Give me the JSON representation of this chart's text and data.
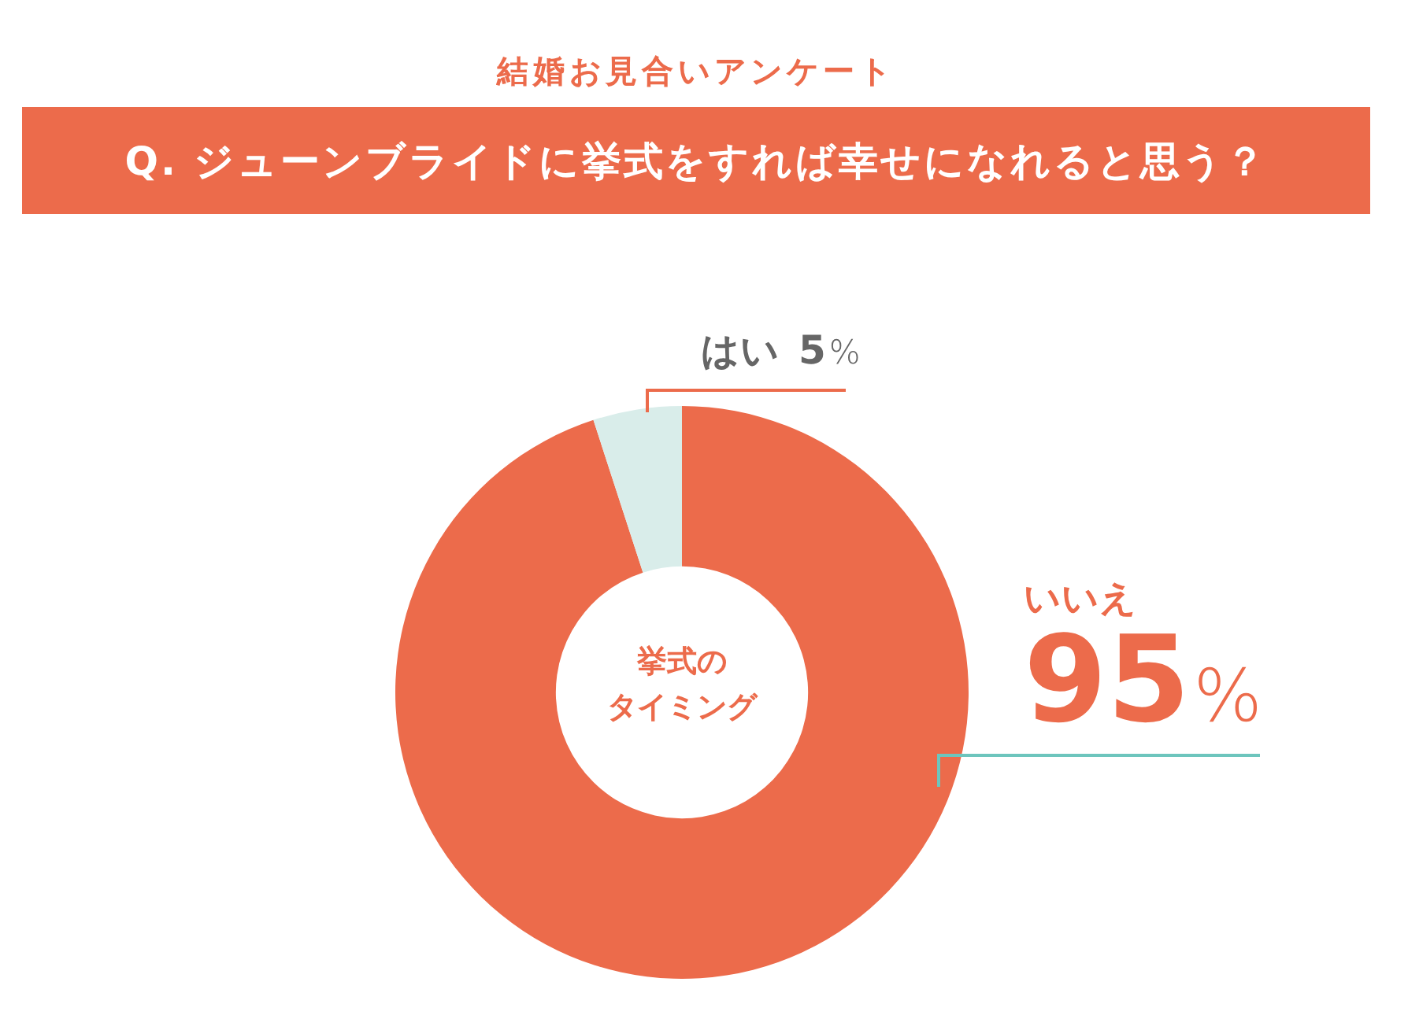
{
  "chart_data": {
    "type": "donut",
    "subtitle": "結婚お見合いアンケート",
    "title": "Q. ジューンブライドに挙式をすれば幸せになれると思う？",
    "categories": [
      "いいえ",
      "はい"
    ],
    "values": [
      95,
      5
    ],
    "colors": [
      "#ec6b4b",
      "#d9edea"
    ],
    "value_labels": [
      "95%",
      "5%"
    ],
    "annotations": [
      "挙式の",
      "タイミング"
    ]
  }
}
